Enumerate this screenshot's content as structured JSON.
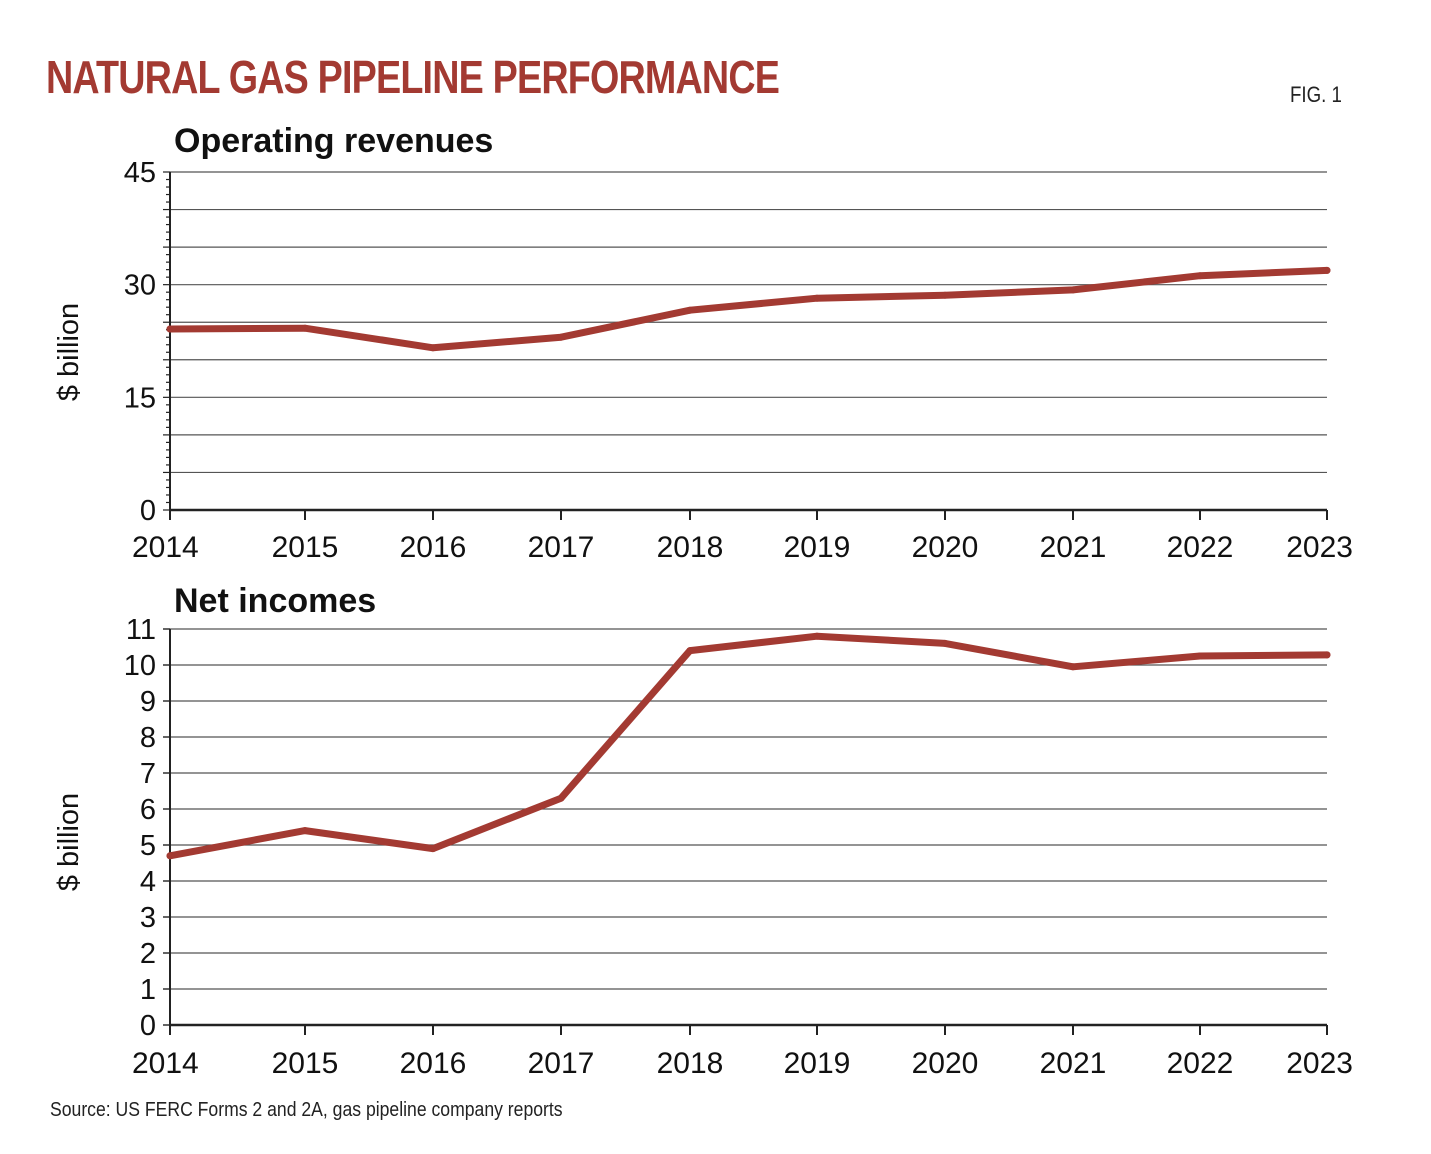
{
  "header": {
    "title": "NATURAL GAS PIPELINE PERFORMANCE",
    "fig_label": "FIG. 1"
  },
  "footer": {
    "source": "Source: US FERC Forms 2 and 2A, gas pipeline company reports"
  },
  "colors": {
    "accent": "#a33a32",
    "line": "#a33a32",
    "grid": "#555555",
    "text": "#111111"
  },
  "chart_data": [
    {
      "type": "line",
      "title": "Operating revenues",
      "xlabel": "",
      "ylabel": "$ billion",
      "categories": [
        "2014",
        "2015",
        "2016",
        "2017",
        "2018",
        "2019",
        "2020",
        "2021",
        "2022",
        "2023"
      ],
      "values": [
        24.1,
        24.2,
        21.6,
        23.0,
        26.6,
        28.2,
        28.6,
        29.3,
        31.2,
        31.9
      ],
      "ylim": [
        0,
        45
      ],
      "yticks": [
        "0",
        "15",
        "30",
        "45"
      ],
      "grid": true
    },
    {
      "type": "line",
      "title": "Net incomes",
      "xlabel": "",
      "ylabel": "$ billion",
      "categories": [
        "2014",
        "2015",
        "2016",
        "2017",
        "2018",
        "2019",
        "2020",
        "2021",
        "2022",
        "2023"
      ],
      "values": [
        4.7,
        5.4,
        4.9,
        6.3,
        10.4,
        10.8,
        10.6,
        9.95,
        10.25,
        10.28
      ],
      "ylim": [
        0,
        11
      ],
      "yticks": [
        "0",
        "1",
        "2",
        "3",
        "4",
        "5",
        "6",
        "7",
        "8",
        "9",
        "10",
        "11"
      ],
      "grid": true
    }
  ]
}
